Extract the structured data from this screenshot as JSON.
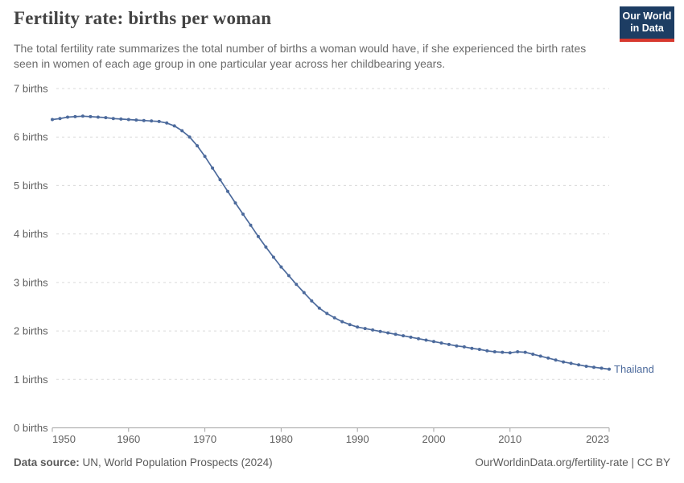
{
  "header": {
    "title": "Fertility rate: births per woman",
    "subtitle": "The total fertility rate summarizes the total number of births a woman would have, if she experienced the birth rates seen in women of each age group in one particular year across her childbearing years.",
    "logo": {
      "line1": "Our World",
      "line2": "in Data",
      "bg_color": "#1d3d63",
      "accent_color": "#d7382e"
    }
  },
  "chart_data": {
    "type": "line",
    "title": "Fertility rate: births per woman",
    "xlabel": "",
    "ylabel": "births",
    "grid": "horizontal-dashed",
    "legend_position": "end-of-line-label",
    "xlim": [
      1950,
      2023
    ],
    "ylim": [
      0,
      7
    ],
    "yticks": [
      {
        "value": 0,
        "label": "0 births"
      },
      {
        "value": 1,
        "label": "1 births"
      },
      {
        "value": 2,
        "label": "2 births"
      },
      {
        "value": 3,
        "label": "3 births"
      },
      {
        "value": 4,
        "label": "4 births"
      },
      {
        "value": 5,
        "label": "5 births"
      },
      {
        "value": 6,
        "label": "6 births"
      },
      {
        "value": 7,
        "label": "7 births"
      }
    ],
    "xticks": [
      {
        "value": 1950,
        "label": "1950"
      },
      {
        "value": 1960,
        "label": "1960"
      },
      {
        "value": 1970,
        "label": "1970"
      },
      {
        "value": 1980,
        "label": "1980"
      },
      {
        "value": 1990,
        "label": "1990"
      },
      {
        "value": 2000,
        "label": "2000"
      },
      {
        "value": 2010,
        "label": "2010"
      },
      {
        "value": 2023,
        "label": "2023"
      }
    ],
    "series": [
      {
        "name": "Thailand",
        "color": "#4C6A9C",
        "x": [
          1950,
          1951,
          1952,
          1953,
          1954,
          1955,
          1956,
          1957,
          1958,
          1959,
          1960,
          1961,
          1962,
          1963,
          1964,
          1965,
          1966,
          1967,
          1968,
          1969,
          1970,
          1971,
          1972,
          1973,
          1974,
          1975,
          1976,
          1977,
          1978,
          1979,
          1980,
          1981,
          1982,
          1983,
          1984,
          1985,
          1986,
          1987,
          1988,
          1989,
          1990,
          1991,
          1992,
          1993,
          1994,
          1995,
          1996,
          1997,
          1998,
          1999,
          2000,
          2001,
          2002,
          2003,
          2004,
          2005,
          2006,
          2007,
          2008,
          2009,
          2010,
          2011,
          2012,
          2013,
          2014,
          2015,
          2016,
          2017,
          2018,
          2019,
          2020,
          2021,
          2022,
          2023
        ],
        "values": [
          6.36,
          6.38,
          6.41,
          6.42,
          6.43,
          6.42,
          6.41,
          6.4,
          6.38,
          6.37,
          6.36,
          6.35,
          6.34,
          6.33,
          6.32,
          6.29,
          6.23,
          6.13,
          6.0,
          5.82,
          5.6,
          5.36,
          5.12,
          4.88,
          4.64,
          4.41,
          4.18,
          3.95,
          3.73,
          3.52,
          3.32,
          3.14,
          2.96,
          2.79,
          2.62,
          2.47,
          2.36,
          2.27,
          2.19,
          2.13,
          2.08,
          2.05,
          2.02,
          1.99,
          1.96,
          1.93,
          1.9,
          1.87,
          1.84,
          1.81,
          1.78,
          1.75,
          1.72,
          1.69,
          1.67,
          1.64,
          1.62,
          1.59,
          1.57,
          1.56,
          1.55,
          1.57,
          1.56,
          1.52,
          1.48,
          1.44,
          1.4,
          1.36,
          1.33,
          1.3,
          1.27,
          1.25,
          1.23,
          1.21
        ]
      }
    ]
  },
  "footer": {
    "source_label": "Data source:",
    "source_text": "UN, World Population Prospects (2024)",
    "link_text": "OurWorldinData.org/fertility-rate | CC BY"
  }
}
